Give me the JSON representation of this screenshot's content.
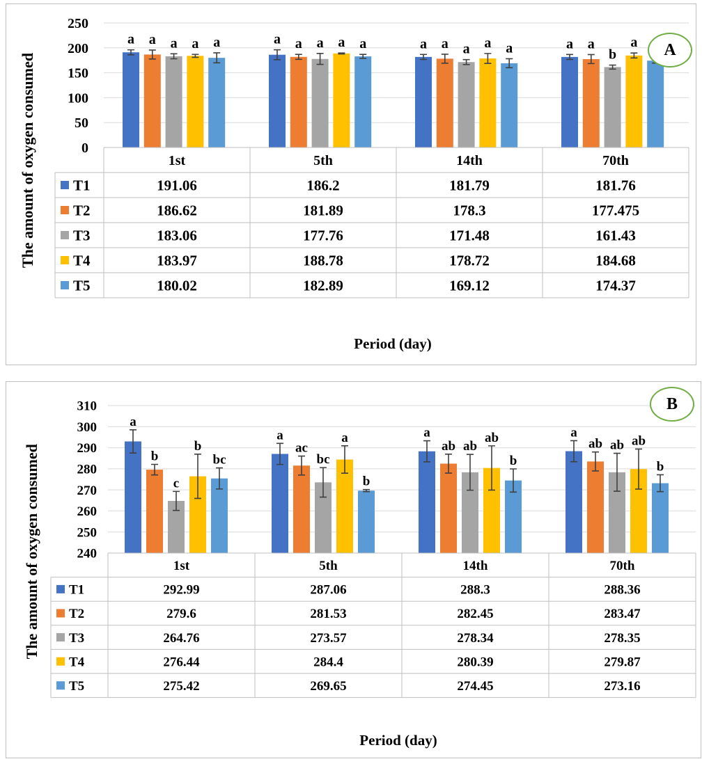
{
  "colors": {
    "T1": "#4472c4",
    "T2": "#ed7d31",
    "T3": "#a5a5a5",
    "T4": "#ffc000",
    "T5": "#5b9bd5",
    "grid": "#d9d9d9",
    "table_border": "#bfbfbf",
    "badge_border": "#70ad47"
  },
  "chart_data": [
    {
      "type": "bar",
      "panel_label": "A",
      "ylabel": "The amount of oxygen consumed",
      "xlabel": "Period (day)",
      "ylim": [
        0,
        250
      ],
      "yticks": [
        0,
        50,
        100,
        150,
        200,
        250
      ],
      "grid": true,
      "legend": "data table",
      "categories": [
        "1st",
        "5th",
        "14th",
        "70th"
      ],
      "series": [
        {
          "name": "T1",
          "values": [
            191.06,
            186.2,
            181.79,
            181.76
          ],
          "display": [
            "191.06",
            "186.2",
            "181.79",
            "181.76"
          ],
          "err": [
            5,
            10,
            5,
            5
          ],
          "letters": [
            "a",
            "a",
            "a",
            "a"
          ]
        },
        {
          "name": "T2",
          "values": [
            186.62,
            181.89,
            178.3,
            177.475
          ],
          "display": [
            "186.62",
            "181.89",
            "178.3",
            "177.475"
          ],
          "err": [
            9,
            5,
            9,
            9
          ],
          "letters": [
            "a",
            "a",
            "a",
            "a"
          ]
        },
        {
          "name": "T3",
          "values": [
            183.06,
            177.76,
            171.48,
            161.43
          ],
          "display": [
            "183.06",
            "177.76",
            "171.48",
            "161.43"
          ],
          "err": [
            5,
            11,
            5,
            4
          ],
          "letters": [
            "a",
            "a",
            "a",
            "b"
          ]
        },
        {
          "name": "T4",
          "values": [
            183.97,
            188.78,
            178.72,
            184.68
          ],
          "display": [
            "183.97",
            "188.78",
            "178.72",
            "184.68"
          ],
          "err": [
            3,
            1,
            10,
            5
          ],
          "letters": [
            "a",
            "a",
            "a",
            "a"
          ]
        },
        {
          "name": "T5",
          "values": [
            180.02,
            182.89,
            169.12,
            174.37
          ],
          "display": [
            "180.02",
            "182.89",
            "169.12",
            "174.37"
          ],
          "err": [
            10,
            4,
            9,
            5
          ],
          "letters": [
            "a",
            "a",
            "a",
            "a"
          ]
        }
      ]
    },
    {
      "type": "bar",
      "panel_label": "B",
      "ylabel": "The amount of oxygen consumed",
      "xlabel": "Period (day)",
      "ylim": [
        240,
        310
      ],
      "yticks": [
        240,
        250,
        260,
        270,
        280,
        290,
        300,
        310
      ],
      "grid": true,
      "legend": "data table",
      "categories": [
        "1st",
        "5th",
        "14th",
        "70th"
      ],
      "series": [
        {
          "name": "T1",
          "values": [
            292.99,
            287.06,
            288.3,
            288.36
          ],
          "display": [
            "292.99",
            "287.06",
            "288.3",
            "288.36"
          ],
          "err": [
            5.5,
            5,
            5,
            5
          ],
          "letters": [
            "a",
            "a",
            "a",
            "a"
          ]
        },
        {
          "name": "T2",
          "values": [
            279.6,
            281.53,
            282.45,
            283.47
          ],
          "display": [
            "279.6",
            "281.53",
            "282.45",
            "283.47"
          ],
          "err": [
            2.5,
            4.5,
            4.5,
            4.5
          ],
          "letters": [
            "b",
            "ac",
            "ab",
            "ab"
          ]
        },
        {
          "name": "T3",
          "values": [
            264.76,
            273.57,
            278.34,
            278.35
          ],
          "display": [
            "264.76",
            "273.57",
            "278.34",
            "278.35"
          ],
          "err": [
            4.5,
            7,
            8.5,
            9
          ],
          "letters": [
            "c",
            "bc",
            "ab",
            "ab"
          ]
        },
        {
          "name": "T4",
          "values": [
            276.44,
            284.4,
            280.39,
            279.87
          ],
          "display": [
            "276.44",
            "284.4",
            "280.39",
            "279.87"
          ],
          "err": [
            10.5,
            6.5,
            10.5,
            9.5
          ],
          "letters": [
            "b",
            "a",
            "ab",
            "ab"
          ]
        },
        {
          "name": "T5",
          "values": [
            275.42,
            269.65,
            274.45,
            273.16
          ],
          "display": [
            "275.42",
            "269.65",
            "274.45",
            "273.16"
          ],
          "err": [
            5,
            0.5,
            5.5,
            4
          ],
          "letters": [
            "bc",
            "b",
            "b",
            "b"
          ]
        }
      ]
    }
  ]
}
